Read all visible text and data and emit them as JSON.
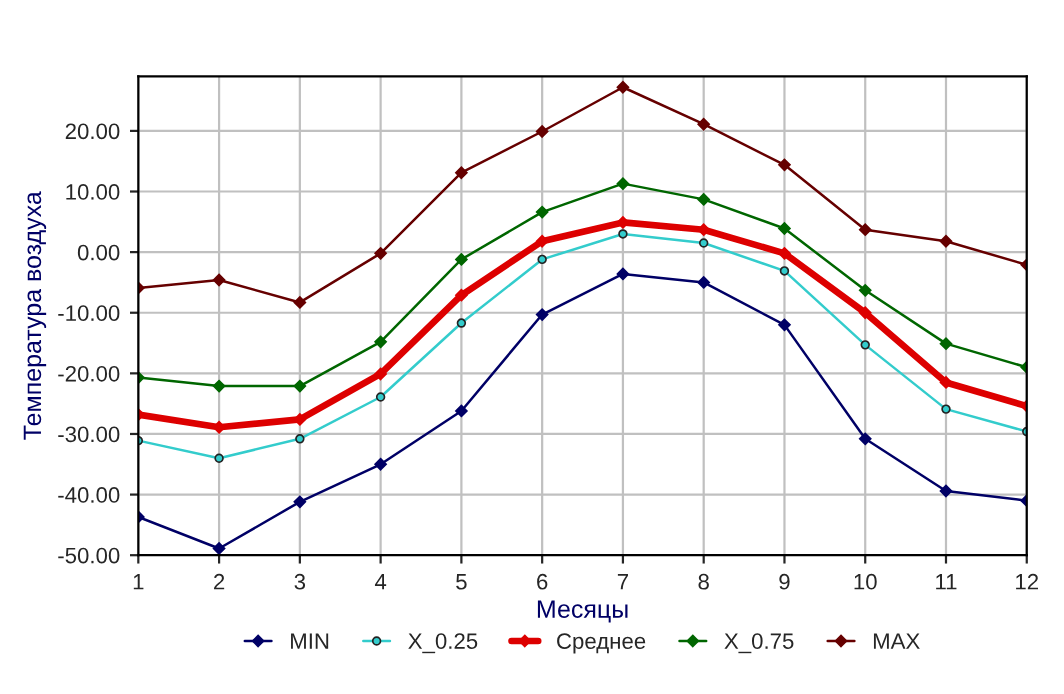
{
  "chart_data": {
    "type": "line",
    "xlabel": "Месяцы",
    "ylabel": "Температура воздуха",
    "x": [
      1,
      2,
      3,
      4,
      5,
      6,
      7,
      8,
      9,
      10,
      11,
      12
    ],
    "xlim": [
      1,
      12
    ],
    "xticks": [
      1,
      2,
      3,
      4,
      5,
      6,
      7,
      8,
      9,
      10,
      11,
      12
    ],
    "ylim": [
      -50,
      29
    ],
    "yticks": [
      {
        "value": -50,
        "label": "-50.00"
      },
      {
        "value": -40,
        "label": "-40.00"
      },
      {
        "value": -30,
        "label": "-30.00"
      },
      {
        "value": -20,
        "label": "-20.00"
      },
      {
        "value": -10,
        "label": "-10.00"
      },
      {
        "value": 0,
        "label": "0.00"
      },
      {
        "value": 10,
        "label": "10.00"
      },
      {
        "value": 20,
        "label": "20.00"
      }
    ],
    "grid": true,
    "legend": "bottom",
    "line_style": "solid",
    "series": [
      {
        "name": "MIN",
        "color": "#000066",
        "marker": "diamond",
        "values": [
          -43.7,
          -48.9,
          -41.2,
          -35.0,
          -26.2,
          -10.3,
          -3.6,
          -5.0,
          -12.0,
          -30.8,
          -39.4,
          -41.0
        ]
      },
      {
        "name": "X_0.25",
        "color": "#33cccc",
        "marker": "circle",
        "values": [
          -31.1,
          -34.0,
          -30.8,
          -23.9,
          -11.7,
          -1.2,
          3.0,
          1.5,
          -3.1,
          -15.3,
          -25.9,
          -29.6
        ]
      },
      {
        "name": "Среднее",
        "color": "#dd0000",
        "marker": "diamond",
        "values": [
          -26.8,
          -28.9,
          -27.6,
          -20.1,
          -7.1,
          1.8,
          4.9,
          3.7,
          -0.2,
          -10.0,
          -21.5,
          -25.4
        ]
      },
      {
        "name": "X_0.75",
        "color": "#006600",
        "marker": "diamond",
        "values": [
          -20.7,
          -22.1,
          -22.1,
          -14.8,
          -1.2,
          6.6,
          11.3,
          8.7,
          3.9,
          -6.3,
          -15.1,
          -19.0
        ]
      },
      {
        "name": "MAX",
        "color": "#660000",
        "marker": "diamond",
        "values": [
          -5.9,
          -4.6,
          -8.3,
          -0.2,
          13.1,
          19.9,
          27.2,
          21.1,
          14.4,
          3.7,
          1.8,
          -2.1
        ]
      }
    ]
  }
}
